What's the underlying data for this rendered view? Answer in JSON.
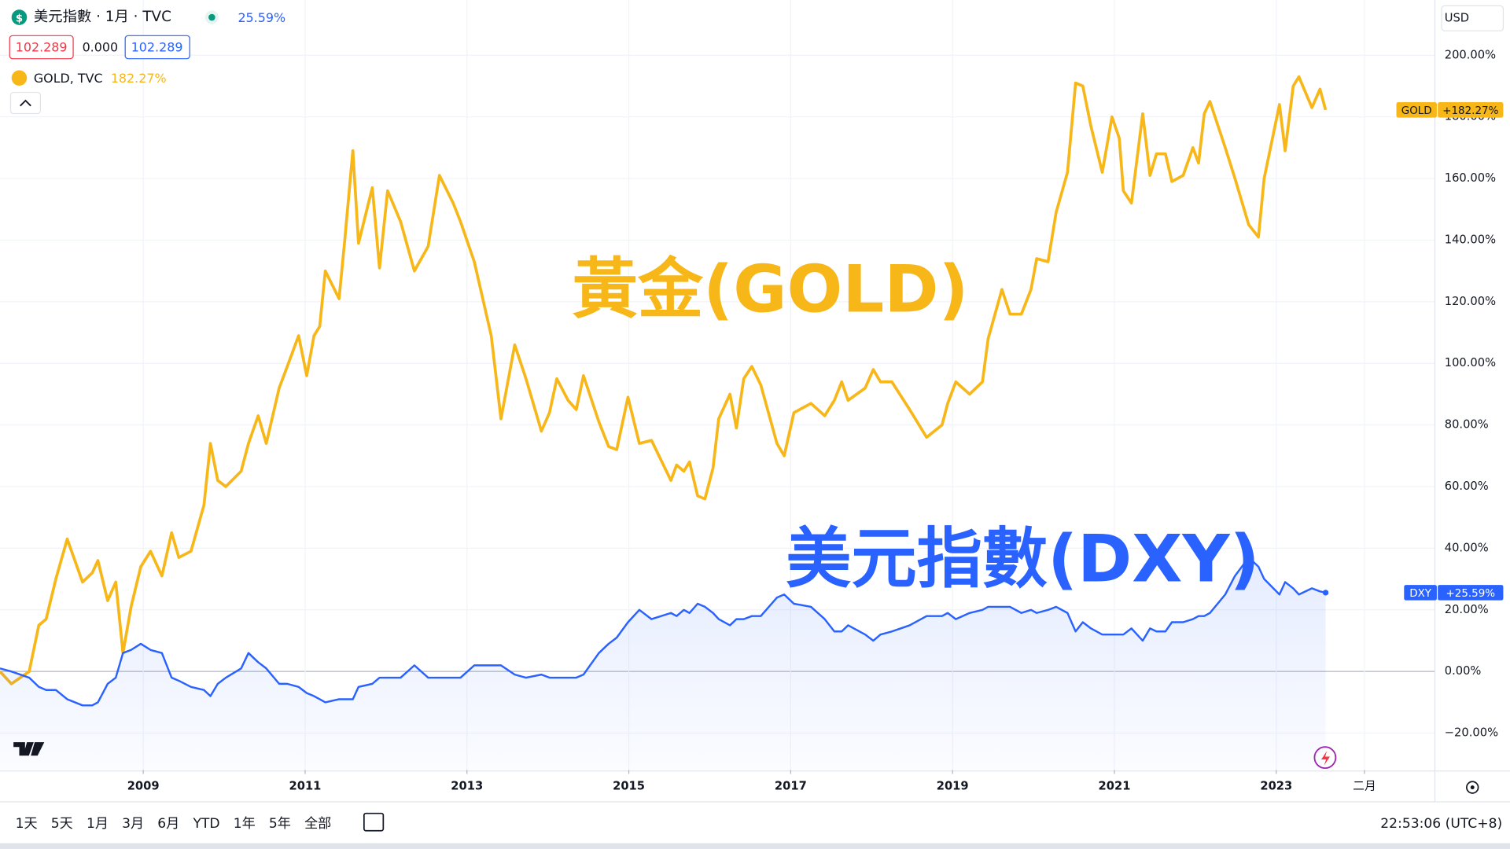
{
  "chart_data": {
    "type": "line",
    "header": {
      "symbol": "美元指數 · 1月 · TVC",
      "change": "25.59%",
      "values": [
        "102.289",
        "0.000",
        "102.289"
      ]
    },
    "overlay": {
      "symbol": "GOLD, TVC",
      "change": "182.27%"
    },
    "currency": "USD",
    "annotations": [
      {
        "text": "黃金(GOLD)",
        "color": "#f7b718"
      },
      {
        "text": "美元指數(DXY)",
        "color": "#2962ff"
      }
    ],
    "x": [
      2007.23,
      2007.37,
      2007.59,
      2007.71,
      2007.8,
      2007.92,
      2008.06,
      2008.25,
      2008.37,
      2008.44,
      2008.56,
      2008.66,
      2008.75,
      2008.85,
      2008.97,
      2009.09,
      2009.23,
      2009.35,
      2009.44,
      2009.59,
      2009.75,
      2009.83,
      2009.92,
      2010.02,
      2010.21,
      2010.3,
      2010.42,
      2010.52,
      2010.68,
      2010.78,
      2010.92,
      2011.02,
      2011.11,
      2011.18,
      2011.25,
      2011.42,
      2011.49,
      2011.59,
      2011.66,
      2011.83,
      2011.92,
      2012.02,
      2012.18,
      2012.35,
      2012.52,
      2012.66,
      2012.83,
      2012.92,
      2013.09,
      2013.3,
      2013.42,
      2013.59,
      2013.73,
      2013.92,
      2014.02,
      2014.11,
      2014.25,
      2014.35,
      2014.44,
      2014.63,
      2014.75,
      2014.85,
      2014.99,
      2015.13,
      2015.28,
      2015.52,
      2015.59,
      2015.68,
      2015.75,
      2015.85,
      2015.94,
      2016.04,
      2016.11,
      2016.25,
      2016.33,
      2016.42,
      2016.52,
      2016.63,
      2016.83,
      2016.92,
      2017.04,
      2017.25,
      2017.42,
      2017.54,
      2017.63,
      2017.71,
      2017.92,
      2018.02,
      2018.11,
      2018.25,
      2018.47,
      2018.68,
      2018.87,
      2018.94,
      2019.04,
      2019.21,
      2019.37,
      2019.44,
      2019.61,
      2019.71,
      2019.85,
      2019.97,
      2020.04,
      2020.18,
      2020.28,
      2020.42,
      2020.52,
      2020.61,
      2020.71,
      2020.85,
      2020.97,
      2021.06,
      2021.11,
      2021.21,
      2021.35,
      2021.44,
      2021.52,
      2021.63,
      2021.71,
      2021.85,
      2021.97,
      2022.04,
      2022.11,
      2022.18,
      2022.37,
      2022.49,
      2022.66,
      2022.78,
      2022.85,
      2023.04,
      2023.11,
      2023.21,
      2023.28,
      2023.44,
      2023.54,
      2023.61
    ],
    "series": [
      {
        "name": "GOLD",
        "color": "#f7b718",
        "last_label": "+182.27%",
        "values": [
          0,
          -4,
          0,
          15,
          17,
          30,
          43,
          29,
          32,
          36,
          23,
          29,
          6,
          21,
          34,
          39,
          31,
          45,
          37,
          39,
          54,
          74,
          62,
          60,
          65,
          74,
          83,
          74,
          92,
          99,
          109,
          96,
          109,
          112,
          130,
          121,
          140,
          169,
          139,
          157,
          131,
          156,
          146,
          130,
          138,
          161,
          152,
          146,
          133,
          109,
          82,
          106,
          95,
          78,
          84,
          95,
          88,
          85,
          96,
          81,
          73,
          72,
          89,
          74,
          75,
          62,
          67,
          65,
          68,
          57,
          56,
          66,
          82,
          90,
          79,
          95,
          99,
          93,
          74,
          70,
          84,
          87,
          83,
          88,
          94,
          88,
          92,
          98,
          94,
          94,
          85,
          76,
          80,
          87,
          94,
          90,
          94,
          108,
          124,
          116,
          116,
          124,
          134,
          133,
          149,
          162,
          191,
          190,
          177,
          162,
          180,
          173,
          156,
          152,
          181,
          161,
          168,
          168,
          159,
          161,
          170,
          165,
          181,
          185,
          170,
          160,
          145,
          141,
          160,
          184,
          169,
          190,
          193,
          183,
          189,
          182.27
        ]
      },
      {
        "name": "DXY",
        "color": "#2962ff",
        "area": true,
        "last_label": "+25.59%",
        "values": [
          1,
          0,
          -2,
          -5,
          -6,
          -6,
          -9,
          -11,
          -11,
          -10,
          -4,
          -2,
          6,
          7,
          9,
          7,
          6,
          -2,
          -3,
          -5,
          -6,
          -8,
          -4,
          -2,
          1,
          6,
          3,
          1,
          -4,
          -4,
          -5,
          -7,
          -8,
          -9,
          -10,
          -9,
          -9,
          -9,
          -5,
          -4,
          -2,
          -2,
          -2,
          2,
          -2,
          -2,
          -2,
          -2,
          2,
          2,
          2,
          -1,
          -2,
          -1,
          -2,
          -2,
          -2,
          -2,
          -1,
          6,
          9,
          11,
          16,
          20,
          17,
          19,
          18,
          20,
          19,
          22,
          21,
          19,
          17,
          15,
          17,
          17,
          18,
          18,
          24,
          25,
          22,
          21,
          17,
          13,
          13,
          15,
          12,
          10,
          12,
          13,
          15,
          18,
          18,
          19,
          17,
          19,
          20,
          21,
          21,
          21,
          19,
          20,
          19,
          20,
          21,
          19,
          13,
          16,
          14,
          12,
          12,
          12,
          12,
          14,
          10,
          14,
          13,
          13,
          16,
          16,
          17,
          18,
          18,
          19,
          25,
          31,
          37,
          34,
          30,
          25,
          29,
          27,
          25,
          27,
          26,
          25.59
        ]
      }
    ],
    "xlim": [
      2007.23,
      2024.96
    ],
    "xticks": [
      2009,
      2011,
      2013,
      2015,
      2017,
      2019,
      2021,
      2023,
      {
        "value": 2024.09,
        "label": "二月"
      }
    ],
    "ylim": [
      -32,
      207
    ],
    "yticks": [
      {
        "value": -20,
        "label": "−20.00%"
      },
      {
        "value": 0,
        "label": "0.00%"
      },
      {
        "value": 20,
        "label": "20.00%"
      },
      {
        "value": 40,
        "label": "40.00%"
      },
      {
        "value": 60,
        "label": "60.00%"
      },
      {
        "value": 80,
        "label": "80.00%"
      },
      {
        "value": 100,
        "label": "100.00%"
      },
      {
        "value": 120,
        "label": "120.00%"
      },
      {
        "value": 140,
        "label": "140.00%"
      },
      {
        "value": 160,
        "label": "160.00%"
      },
      {
        "value": 180,
        "label": "180.00%"
      },
      {
        "value": 200,
        "label": "200.00%"
      }
    ],
    "grid": true,
    "toolbar": [
      "1天",
      "5天",
      "1月",
      "3月",
      "6月",
      "YTD",
      "1年",
      "5年",
      "全部"
    ],
    "clock": "22:53:06 (UTC+8)"
  }
}
